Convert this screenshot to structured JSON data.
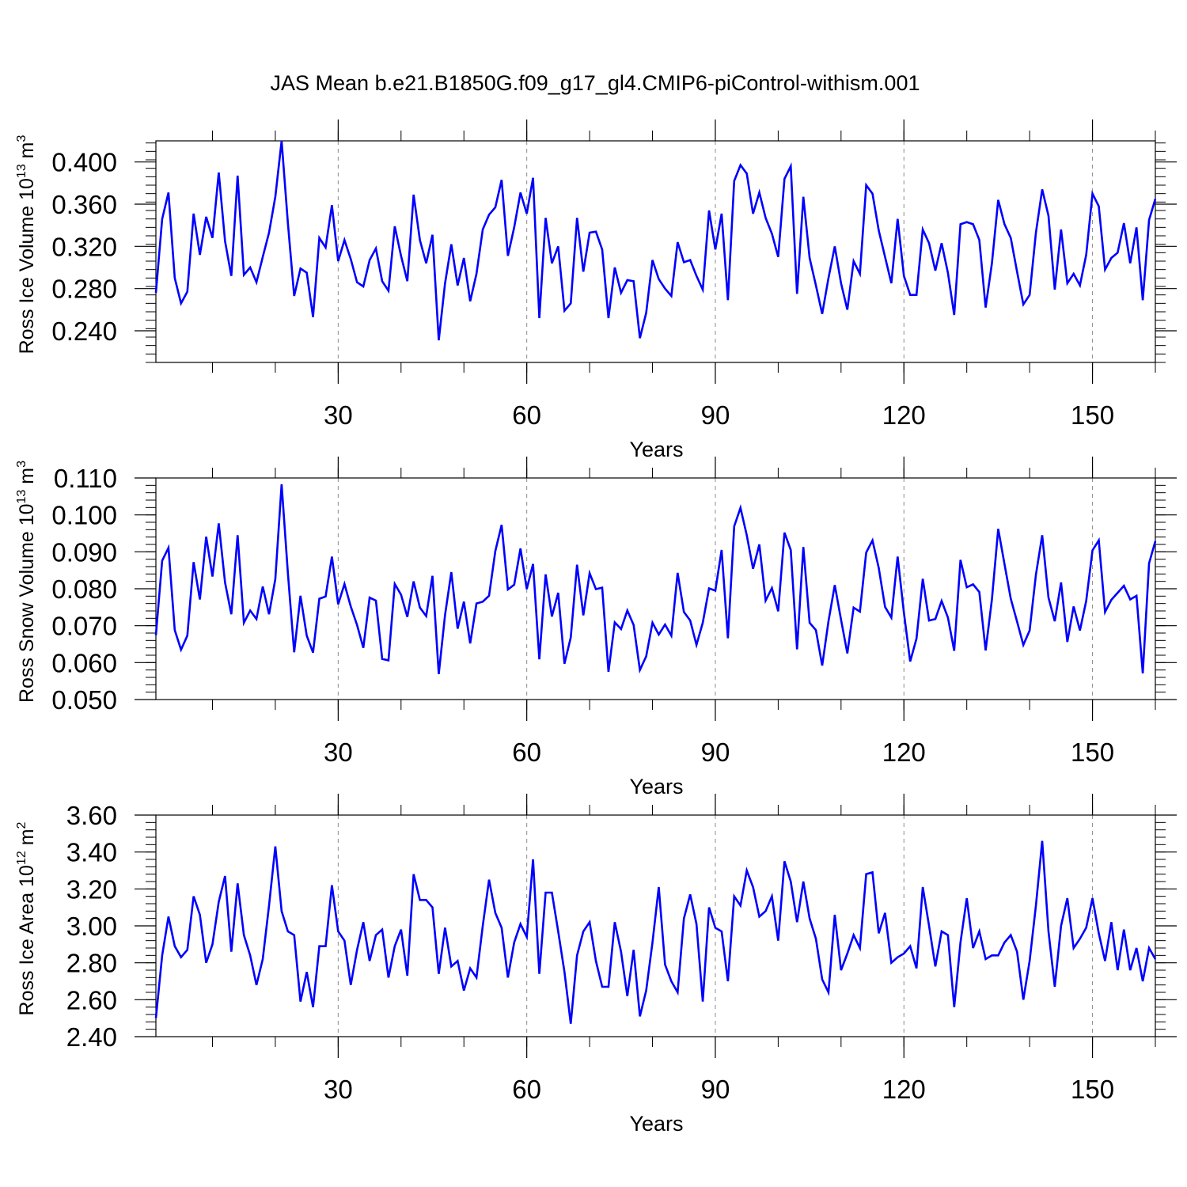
{
  "title": "JAS Mean b.e21.B1850G.f09_g17_gl4.CMIP6-piControl-withism.001",
  "colors": {
    "line": "#0000ff",
    "axis": "#000000",
    "grid": "#8c8c8c",
    "background": "#ffffff"
  },
  "chart_data": [
    {
      "type": "line",
      "name": "ross-ice-volume",
      "ylabel_main": "Ross Ice Volume 10",
      "ylabel_exp": "13",
      "ylabel_unit": " m",
      "ylabel_unit_exp": "3",
      "xlabel": "Years",
      "xlim": [
        1,
        160
      ],
      "ylim": [
        0.21,
        0.42
      ],
      "yticks": [
        0.24,
        0.28,
        0.32,
        0.36,
        0.4
      ],
      "ytick_labels": [
        "0.240",
        "0.280",
        "0.320",
        "0.360",
        "0.400"
      ],
      "yminor_step": 0.008,
      "xticks": [
        30,
        60,
        90,
        120,
        150
      ],
      "xtick_labels": [
        "30",
        "60",
        "90",
        "120",
        "150"
      ],
      "xminor_step": 10,
      "grid_x": [
        30,
        60,
        90,
        120,
        150
      ],
      "series": [
        {
          "name": "Ross Ice Volume",
          "values": [
            0.276,
            0.346,
            0.371,
            0.29,
            0.266,
            0.277,
            0.351,
            0.312,
            0.348,
            0.328,
            0.39,
            0.325,
            0.292,
            0.387,
            0.293,
            0.3,
            0.286,
            0.31,
            0.333,
            0.367,
            0.42,
            0.342,
            0.273,
            0.299,
            0.295,
            0.253,
            0.328,
            0.319,
            0.359,
            0.306,
            0.326,
            0.308,
            0.286,
            0.282,
            0.307,
            0.318,
            0.287,
            0.278,
            0.339,
            0.311,
            0.287,
            0.369,
            0.326,
            0.304,
            0.331,
            0.231,
            0.285,
            0.322,
            0.283,
            0.309,
            0.268,
            0.294,
            0.336,
            0.35,
            0.357,
            0.383,
            0.311,
            0.338,
            0.371,
            0.351,
            0.385,
            0.252,
            0.347,
            0.304,
            0.32,
            0.259,
            0.266,
            0.347,
            0.296,
            0.333,
            0.334,
            0.317,
            0.252,
            0.3,
            0.276,
            0.288,
            0.287,
            0.233,
            0.257,
            0.307,
            0.289,
            0.28,
            0.273,
            0.324,
            0.305,
            0.307,
            0.292,
            0.279,
            0.354,
            0.317,
            0.351,
            0.269,
            0.382,
            0.397,
            0.389,
            0.351,
            0.371,
            0.347,
            0.332,
            0.31,
            0.384,
            0.396,
            0.275,
            0.367,
            0.309,
            0.283,
            0.256,
            0.29,
            0.32,
            0.285,
            0.26,
            0.306,
            0.294,
            0.378,
            0.37,
            0.335,
            0.31,
            0.285,
            0.346,
            0.292,
            0.274,
            0.274,
            0.336,
            0.323,
            0.297,
            0.323,
            0.295,
            0.255,
            0.341,
            0.343,
            0.341,
            0.326,
            0.262,
            0.304,
            0.364,
            0.341,
            0.328,
            0.296,
            0.265,
            0.274,
            0.333,
            0.374,
            0.349,
            0.279,
            0.336,
            0.285,
            0.294,
            0.283,
            0.312,
            0.37,
            0.358,
            0.298,
            0.309,
            0.314,
            0.342,
            0.304,
            0.338,
            0.269,
            0.345,
            0.365
          ]
        }
      ]
    },
    {
      "type": "line",
      "name": "ross-snow-volume",
      "ylabel_main": "Ross Snow Volume 10",
      "ylabel_exp": "13",
      "ylabel_unit": " m",
      "ylabel_unit_exp": "3",
      "xlabel": "Years",
      "xlim": [
        1,
        160
      ],
      "ylim": [
        0.05,
        0.11
      ],
      "yticks": [
        0.05,
        0.06,
        0.07,
        0.08,
        0.09,
        0.1,
        0.11
      ],
      "ytick_labels": [
        "0.050",
        "0.060",
        "0.070",
        "0.080",
        "0.090",
        "0.100",
        "0.110"
      ],
      "yminor_step": 0.002,
      "xticks": [
        30,
        60,
        90,
        120,
        150
      ],
      "xtick_labels": [
        "30",
        "60",
        "90",
        "120",
        "150"
      ],
      "xminor_step": 10,
      "grid_x": [
        30,
        60,
        90,
        120,
        150
      ],
      "series": [
        {
          "name": "Ross Snow Volume",
          "values": [
            0.0674,
            0.0876,
            0.0911,
            0.0688,
            0.0635,
            0.0673,
            0.0872,
            0.0771,
            0.0941,
            0.0833,
            0.0977,
            0.0817,
            0.0731,
            0.0945,
            0.0708,
            0.0741,
            0.0718,
            0.0806,
            0.0731,
            0.0826,
            0.1083,
            0.0842,
            0.0628,
            0.0781,
            0.0673,
            0.0627,
            0.0773,
            0.0779,
            0.0887,
            0.0758,
            0.0813,
            0.0752,
            0.0702,
            0.064,
            0.0776,
            0.0768,
            0.061,
            0.0606,
            0.0813,
            0.0784,
            0.0724,
            0.082,
            0.0749,
            0.0726,
            0.0835,
            0.0569,
            0.0729,
            0.0845,
            0.0692,
            0.0765,
            0.0652,
            0.076,
            0.0765,
            0.0781,
            0.0902,
            0.0973,
            0.0798,
            0.0811,
            0.0909,
            0.0799,
            0.0867,
            0.0609,
            0.0839,
            0.0725,
            0.0789,
            0.0597,
            0.0668,
            0.0865,
            0.0728,
            0.0842,
            0.0799,
            0.0803,
            0.0575,
            0.0709,
            0.0691,
            0.0741,
            0.0702,
            0.058,
            0.0617,
            0.0708,
            0.0676,
            0.0703,
            0.0673,
            0.0843,
            0.0737,
            0.0714,
            0.0648,
            0.0708,
            0.0801,
            0.0795,
            0.0905,
            0.0666,
            0.0969,
            0.1019,
            0.0945,
            0.0854,
            0.092,
            0.0768,
            0.0802,
            0.0739,
            0.0952,
            0.0905,
            0.0636,
            0.0913,
            0.0708,
            0.0688,
            0.0592,
            0.0712,
            0.081,
            0.0716,
            0.0625,
            0.0749,
            0.0738,
            0.0898,
            0.0931,
            0.0856,
            0.0751,
            0.0722,
            0.0887,
            0.0735,
            0.0603,
            0.0665,
            0.0827,
            0.0714,
            0.0718,
            0.0767,
            0.0722,
            0.0632,
            0.0878,
            0.0804,
            0.0812,
            0.0791,
            0.0633,
            0.0771,
            0.0962,
            0.0867,
            0.0773,
            0.0711,
            0.0648,
            0.0687,
            0.0838,
            0.0945,
            0.0776,
            0.0712,
            0.0817,
            0.0656,
            0.0752,
            0.0687,
            0.0767,
            0.0904,
            0.0931,
            0.0737,
            0.077,
            0.0789,
            0.0808,
            0.0771,
            0.0781,
            0.0571,
            0.0869,
            0.0929
          ]
        }
      ]
    },
    {
      "type": "line",
      "name": "ross-ice-area",
      "ylabel_main": "Ross Ice Area 10",
      "ylabel_exp": "12",
      "ylabel_unit": " m",
      "ylabel_unit_exp": "2",
      "xlabel": "Years",
      "xlim": [
        1,
        160
      ],
      "ylim": [
        2.4,
        3.6
      ],
      "yticks": [
        2.4,
        2.6,
        2.8,
        3.0,
        3.2,
        3.4,
        3.6
      ],
      "ytick_labels": [
        "2.40",
        "2.60",
        "2.80",
        "3.00",
        "3.20",
        "3.40",
        "3.60"
      ],
      "yminor_step": 0.04,
      "xticks": [
        30,
        60,
        90,
        120,
        150
      ],
      "xtick_labels": [
        "30",
        "60",
        "90",
        "120",
        "150"
      ],
      "xminor_step": 10,
      "grid_x": [
        30,
        60,
        90,
        120,
        150
      ],
      "series": [
        {
          "name": "Ross Ice Area",
          "values": [
            2.5,
            2.84,
            3.05,
            2.89,
            2.83,
            2.87,
            3.16,
            3.06,
            2.8,
            2.9,
            3.13,
            3.27,
            2.86,
            3.23,
            2.95,
            2.84,
            2.68,
            2.82,
            3.11,
            3.43,
            3.08,
            2.97,
            2.95,
            2.59,
            2.75,
            2.56,
            2.89,
            2.89,
            3.22,
            2.97,
            2.92,
            2.68,
            2.87,
            3.02,
            2.81,
            2.95,
            2.98,
            2.72,
            2.89,
            2.98,
            2.73,
            3.28,
            3.14,
            3.14,
            3.1,
            2.74,
            2.99,
            2.78,
            2.81,
            2.65,
            2.77,
            2.72,
            3.0,
            3.25,
            3.07,
            2.99,
            2.72,
            2.91,
            3.01,
            2.94,
            3.36,
            2.74,
            3.18,
            3.18,
            2.97,
            2.75,
            2.47,
            2.84,
            2.97,
            3.02,
            2.81,
            2.67,
            2.67,
            3.02,
            2.86,
            2.62,
            2.87,
            2.51,
            2.65,
            2.91,
            3.21,
            2.79,
            2.7,
            2.64,
            3.04,
            3.17,
            3.01,
            2.59,
            3.1,
            2.99,
            2.97,
            2.7,
            3.16,
            3.11,
            3.3,
            3.21,
            3.05,
            3.08,
            3.16,
            2.92,
            3.35,
            3.24,
            3.02,
            3.24,
            3.04,
            2.93,
            2.71,
            2.64,
            3.06,
            2.76,
            2.85,
            2.95,
            2.88,
            3.28,
            3.29,
            2.96,
            3.07,
            2.8,
            2.83,
            2.85,
            2.89,
            2.77,
            3.21,
            3.0,
            2.78,
            2.97,
            2.95,
            2.56,
            2.91,
            3.15,
            2.88,
            2.97,
            2.82,
            2.84,
            2.84,
            2.91,
            2.95,
            2.86,
            2.6,
            2.81,
            3.11,
            3.46,
            2.97,
            2.67,
            3.0,
            3.15,
            2.88,
            2.93,
            2.99,
            3.15,
            2.96,
            2.81,
            3.02,
            2.76,
            2.98,
            2.76,
            2.88,
            2.7,
            2.88,
            2.82
          ]
        }
      ]
    }
  ]
}
